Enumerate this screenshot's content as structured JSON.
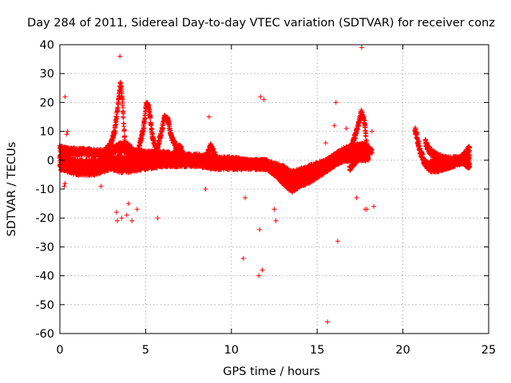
{
  "chart_data": {
    "type": "scatter",
    "title": "Day 284 of 2011, Sidereal Day-to-day VTEC variation (SDTVAR) for receiver conz",
    "xlabel": "GPS time / hours",
    "ylabel": "SDTVAR / TECUs",
    "xlim": [
      0,
      25
    ],
    "ylim": [
      -60,
      40
    ],
    "xticks": [
      0,
      5,
      10,
      15,
      20,
      25
    ],
    "yticks": [
      40,
      30,
      20,
      10,
      0,
      -10,
      -20,
      -30,
      -40,
      -50,
      -60
    ],
    "grid": true,
    "marker": "+",
    "marker_color": "#ff0000",
    "series": [
      {
        "name": "SDTVAR",
        "data_gap_hours": [
          18.3,
          20.7
        ],
        "band_traces": [
          {
            "x": [
              0.0,
              0.5,
              1.0,
              1.5,
              2.0,
              2.5,
              3.0,
              3.5,
              4.0,
              5.0,
              6.0,
              7.0,
              8.0,
              9.0,
              10.0,
              11.0,
              12.0,
              12.5,
              13.0,
              13.5,
              14.0,
              14.5,
              15.0,
              15.5,
              16.0,
              16.5,
              17.0,
              17.5,
              18.0
            ],
            "y": [
              4,
              3,
              3,
              3,
              2.5,
              2.5,
              3,
              5,
              3,
              2,
              2,
              1,
              1,
              0,
              0,
              -1,
              -1,
              -3,
              -5,
              -7,
              -5,
              -4,
              -3,
              -1,
              1,
              3,
              4,
              5,
              4
            ]
          },
          {
            "x": [
              0.0,
              0.5,
              1.0,
              1.5,
              2.0,
              2.5,
              3.0,
              3.5,
              4.0,
              5.0,
              6.0,
              7.0,
              8.0,
              9.0,
              10.0,
              11.0,
              12.0,
              12.5,
              13.0,
              13.5,
              14.0,
              14.5,
              15.0,
              15.5,
              16.0,
              16.5,
              17.0,
              17.5,
              18.0
            ],
            "y": [
              -2,
              -3,
              -4,
              -4,
              -4,
              -3,
              -2,
              -3,
              -3,
              -2,
              -1,
              -1,
              -1,
              -2,
              -2,
              -2,
              -2,
              -4,
              -7,
              -10,
              -8,
              -7,
              -5,
              -3,
              -1,
              1,
              2,
              2,
              2
            ]
          },
          {
            "x": [
              0.0,
              0.5,
              1.0,
              2.0,
              3.0,
              4.0,
              5.0,
              6.0,
              7.0,
              8.0,
              9.0,
              10.0,
              11.0,
              12.0,
              13.0,
              13.5,
              14.0,
              15.0,
              16.0,
              17.0,
              18.0
            ],
            "y": [
              1,
              0,
              -1,
              -1,
              0,
              0,
              0,
              0,
              0,
              0,
              -1,
              -1,
              -1,
              -1,
              -3,
              -5,
              -4,
              -2,
              0,
              1,
              1
            ]
          },
          {
            "x": [
              20.7,
              21.0,
              21.3,
              21.6,
              22.0,
              22.5,
              23.0,
              23.5,
              23.9
            ],
            "y": [
              11,
              3,
              -1,
              -3,
              -3,
              -2,
              -1,
              1,
              4
            ]
          },
          {
            "x": [
              21.3,
              21.6,
              22.0,
              22.5,
              23.0,
              23.5,
              23.9
            ],
            "y": [
              6,
              3,
              1,
              0,
              0,
              0,
              -2
            ]
          },
          {
            "x": [
              21.6,
              22.0,
              22.5,
              23.0,
              23.5,
              23.9
            ],
            "y": [
              -1,
              -2,
              -2,
              -1,
              0,
              1
            ]
          }
        ],
        "spike_traces": [
          {
            "x": [
              2.6,
              2.9,
              3.2,
              3.4,
              3.55,
              3.65,
              3.8
            ],
            "y": [
              3,
              5,
              10,
              20,
              27,
              20,
              5
            ]
          },
          {
            "x": [
              3.4,
              3.6,
              4.0,
              4.3,
              4.8
            ],
            "y": [
              0,
              5,
              5,
              3,
              0
            ]
          },
          {
            "x": [
              4.3,
              4.6,
              4.9,
              5.05,
              5.2,
              5.4,
              5.7
            ],
            "y": [
              1,
              4,
              12,
              20,
              18,
              8,
              2
            ]
          },
          {
            "x": [
              5.2,
              5.6,
              5.9,
              6.1,
              6.3,
              6.5,
              6.9
            ],
            "y": [
              0,
              3,
              9,
              15,
              14,
              8,
              3
            ]
          },
          {
            "x": [
              6.5,
              7.0,
              7.3
            ],
            "y": [
              1,
              5,
              0
            ]
          },
          {
            "x": [
              8.5,
              8.8,
              9.1
            ],
            "y": [
              1,
              5,
              1
            ]
          },
          {
            "x": [
              16.6,
              17.0,
              17.3,
              17.6,
              17.8,
              17.9
            ],
            "y": [
              2,
              5,
              10,
              17,
              12,
              4
            ]
          },
          {
            "x": [
              16.9,
              17.3,
              17.7,
              18.0,
              18.2
            ],
            "y": [
              -3,
              0,
              3,
              4,
              3
            ]
          }
        ],
        "outliers": {
          "x": [
            0.3,
            0.25,
            0.4,
            0.45,
            0.3,
            3.3,
            3.35,
            3.5,
            3.6,
            3.9,
            4.0,
            4.2,
            4.5,
            5.7,
            8.7,
            8.5,
            10.7,
            11.7,
            11.9,
            10.8,
            11.65,
            11.8,
            11.6,
            12.5,
            12.6,
            15.5,
            15.6,
            16.1,
            16.2,
            17.3,
            17.8,
            17.6,
            18.2,
            18.3,
            17.9,
            16.0,
            16.7,
            2.4
          ],
          "y": [
            22,
            -9,
            9,
            10,
            -8,
            -18,
            -21,
            36,
            -20,
            -19,
            -15,
            -21,
            -17,
            -20,
            15,
            -10,
            -34,
            22,
            21,
            -13,
            -24,
            -38,
            -40,
            -17,
            -21,
            6,
            -56,
            20,
            -28,
            -13,
            -17,
            39,
            10,
            -16,
            -17,
            12,
            11,
            -9
          ]
        }
      }
    ]
  }
}
